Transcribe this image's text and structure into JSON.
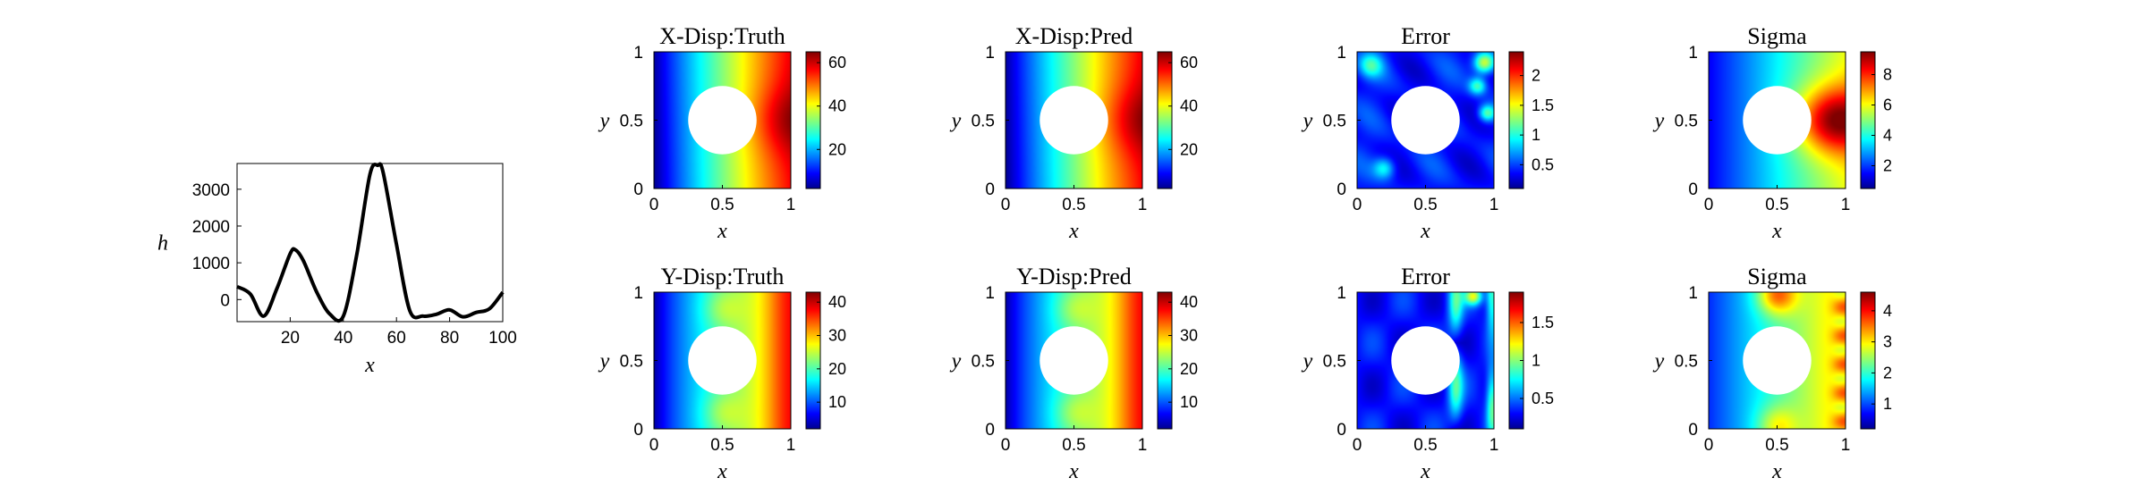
{
  "chart_data": [
    {
      "id": "h-curve",
      "type": "line",
      "xlabel": "x",
      "ylabel": "h",
      "xlim": [
        0,
        100
      ],
      "ylim": [
        -600,
        3700
      ],
      "xticks": [
        20,
        40,
        60,
        80,
        100
      ],
      "yticks": [
        0,
        1000,
        2000,
        3000
      ],
      "series": [
        {
          "x": [
            0,
            5,
            10,
            15,
            20,
            22,
            25,
            30,
            35,
            40,
            45,
            50,
            53,
            55,
            60,
            65,
            70,
            75,
            80,
            85,
            90,
            95,
            100
          ],
          "values": [
            350,
            150,
            -450,
            300,
            1250,
            1350,
            1050,
            200,
            -400,
            -450,
            1200,
            3400,
            3650,
            3450,
            1500,
            -300,
            -450,
            -400,
            -280,
            -470,
            -350,
            -250,
            200
          ]
        }
      ]
    },
    {
      "id": "x-disp-truth",
      "type": "heatmap",
      "title": "X-Disp:Truth",
      "xlabel": "x",
      "ylabel": "y",
      "xticks": [
        0,
        0.5,
        1
      ],
      "yticks": [
        0,
        0.5,
        1
      ],
      "colorbar_ticks": [
        20,
        40,
        60
      ],
      "colorbar_range": [
        2,
        65
      ]
    },
    {
      "id": "x-disp-pred",
      "type": "heatmap",
      "title": "X-Disp:Pred",
      "xlabel": "x",
      "ylabel": "y",
      "xticks": [
        0,
        0.5,
        1
      ],
      "yticks": [
        0,
        0.5,
        1
      ],
      "colorbar_ticks": [
        20,
        40,
        60
      ],
      "colorbar_range": [
        2,
        65
      ]
    },
    {
      "id": "x-error",
      "type": "heatmap",
      "title": "Error",
      "xlabel": "x",
      "ylabel": "y",
      "xticks": [
        0,
        0.5,
        1
      ],
      "yticks": [
        0,
        0.5,
        1
      ],
      "colorbar_ticks": [
        0.5,
        1,
        1.5,
        2
      ],
      "colorbar_range": [
        0.1,
        2.4
      ]
    },
    {
      "id": "x-sigma",
      "type": "heatmap",
      "title": "Sigma",
      "xlabel": "x",
      "ylabel": "y",
      "xticks": [
        0,
        0.5,
        1
      ],
      "yticks": [
        0,
        0.5,
        1
      ],
      "colorbar_ticks": [
        2,
        4,
        6,
        8
      ],
      "colorbar_range": [
        0.5,
        9.5
      ]
    },
    {
      "id": "y-disp-truth",
      "type": "heatmap",
      "title": "Y-Disp:Truth",
      "xlabel": "x",
      "ylabel": "y",
      "xticks": [
        0,
        0.5,
        1
      ],
      "yticks": [
        0,
        0.5,
        1
      ],
      "colorbar_ticks": [
        10,
        20,
        30,
        40
      ],
      "colorbar_range": [
        2,
        43
      ]
    },
    {
      "id": "y-disp-pred",
      "type": "heatmap",
      "title": "Y-Disp:Pred",
      "xlabel": "x",
      "ylabel": "y",
      "xticks": [
        0,
        0.5,
        1
      ],
      "yticks": [
        0,
        0.5,
        1
      ],
      "colorbar_ticks": [
        10,
        20,
        30,
        40
      ],
      "colorbar_range": [
        2,
        43
      ]
    },
    {
      "id": "y-error",
      "type": "heatmap",
      "title": "Error",
      "xlabel": "x",
      "ylabel": "y",
      "xticks": [
        0,
        0.5,
        1
      ],
      "yticks": [
        0,
        0.5,
        1
      ],
      "colorbar_ticks": [
        0.5,
        1,
        1.5
      ],
      "colorbar_range": [
        0.1,
        1.9
      ]
    },
    {
      "id": "y-sigma",
      "type": "heatmap",
      "title": "Sigma",
      "xlabel": "x",
      "ylabel": "y",
      "xticks": [
        0,
        0.5,
        1
      ],
      "yticks": [
        0,
        0.5,
        1
      ],
      "colorbar_ticks": [
        1,
        2,
        3,
        4
      ],
      "colorbar_range": [
        0.2,
        4.6
      ]
    }
  ]
}
